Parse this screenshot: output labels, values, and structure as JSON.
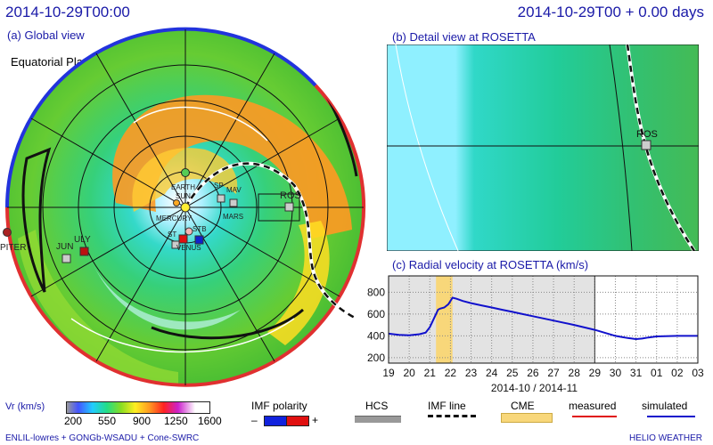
{
  "header": {
    "left_timestamp": "2014-10-29T00:00",
    "right_timestamp": "2014-10-29T00 + 0.00 days"
  },
  "global_view": {
    "label": "(a) Global view",
    "plane_label": "Equatorial Plane",
    "bodies": [
      "EARTH",
      "SUN",
      "MERCURY",
      "VENUS",
      "MARS",
      "MAV",
      "SP",
      "ST",
      "STB",
      "JUN",
      "ULY",
      "PITER",
      "ROS"
    ]
  },
  "detail_view": {
    "label": "(b) Detail view at ROSETTA",
    "marker_label": "ROS"
  },
  "chart_data": {
    "type": "line",
    "title": "(c) Radial velocity at ROSETTA (km/s)",
    "x_tick_labels": [
      "19",
      "20",
      "21",
      "22",
      "23",
      "24",
      "25",
      "26",
      "27",
      "28",
      "29",
      "30",
      "31",
      "01",
      "02",
      "03"
    ],
    "xlabel": "2014-10 / 2014-11",
    "y_tick_labels": [
      "200",
      "400",
      "600",
      "800"
    ],
    "ylim": [
      150,
      950
    ],
    "x": [
      19,
      19.5,
      20,
      20.5,
      20.8,
      21,
      21.2,
      21.3,
      21.4,
      21.5,
      21.7,
      21.9,
      22,
      22.1,
      22.3,
      22.6,
      23,
      23.5,
      24,
      24.5,
      25,
      25.5,
      26,
      27,
      28,
      29,
      30,
      30.3,
      30.6,
      31,
      31.3,
      31.6,
      32,
      33,
      34
    ],
    "series": [
      {
        "name": "simulated",
        "color": "#1111cc",
        "values": [
          420,
          410,
          405,
          415,
          430,
          480,
          560,
          600,
          640,
          650,
          660,
          690,
          720,
          750,
          740,
          720,
          700,
          680,
          660,
          640,
          620,
          600,
          580,
          540,
          500,
          455,
          400,
          390,
          380,
          370,
          375,
          385,
          395,
          400,
          400
        ]
      }
    ],
    "shaded_ranges": [
      {
        "role": "past",
        "from": 19,
        "to": 29,
        "color": "#e3e3e3"
      },
      {
        "role": "cme",
        "from": 21.3,
        "to": 22.1,
        "color": "#f8d77a"
      }
    ],
    "current_time_marker": 29,
    "grid": true
  },
  "colorbar": {
    "label": "Vr (km/s)",
    "ticks": [
      "200",
      "550",
      "900",
      "1250",
      "1600"
    ]
  },
  "legend": {
    "imf_polarity": {
      "title": "IMF polarity",
      "minus": "–",
      "plus": "+"
    },
    "hcs": "HCS",
    "imf_line": "IMF line",
    "cme": "CME",
    "measured": "measured",
    "simulated": "simulated"
  },
  "footer": {
    "model": "ENLIL-lowres + GONGb-WSADU + Cone-SWRC",
    "brand": "HELIO WEATHER"
  },
  "colors": {
    "title": "#1a1aa8",
    "measured": "#e01010",
    "simulated": "#1111cc",
    "cme": "#f8d77a",
    "rim_blue": "#2233dd",
    "rim_red": "#e03030"
  }
}
